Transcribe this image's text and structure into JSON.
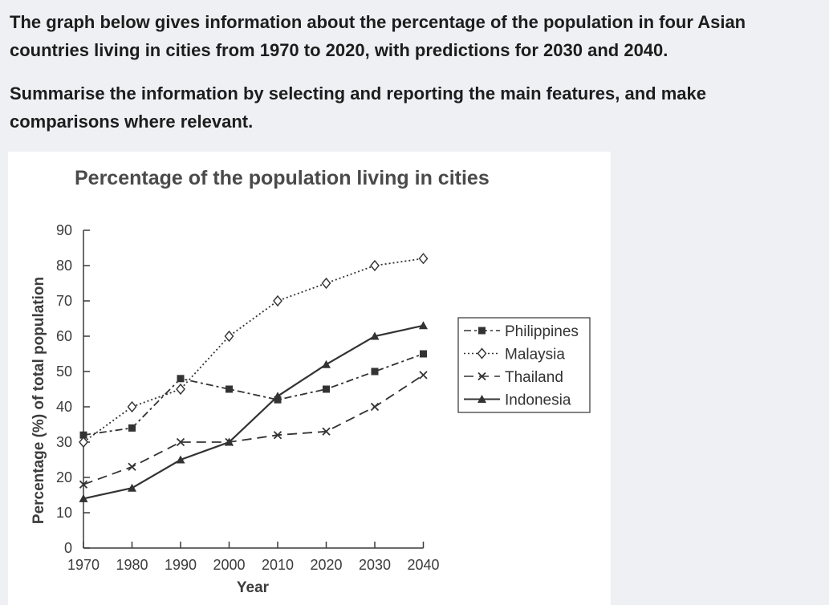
{
  "prompt": {
    "line1": "The graph below gives information about the percentage of the population in four Asian countries living in cities from 1970 to 2020, with predictions for 2030 and 2040.",
    "line2": "Summarise the information by selecting and reporting the main features, and make comparisons where relevant."
  },
  "chart_data": {
    "type": "line",
    "title": "Percentage of the population living in cities",
    "xlabel": "Year",
    "ylabel": "Percentage (%) of total population",
    "x": [
      1970,
      1980,
      1990,
      2000,
      2010,
      2020,
      2030,
      2040
    ],
    "x_ticks": [
      "1970",
      "1980",
      "1990",
      "2000",
      "2010",
      "2020",
      "2030",
      "2040"
    ],
    "y_ticks": [
      "0",
      "10",
      "20",
      "30",
      "40",
      "50",
      "60",
      "70",
      "80",
      "90"
    ],
    "ylim": [
      0,
      90
    ],
    "grid": false,
    "legend_position": "right",
    "series": [
      {
        "name": "Philippines",
        "marker": "square",
        "dash": "dash-dot",
        "values": [
          32,
          34,
          48,
          45,
          42,
          45,
          50,
          55
        ]
      },
      {
        "name": "Malaysia",
        "marker": "diamond",
        "dash": "dotted",
        "values": [
          30,
          40,
          45,
          60,
          70,
          75,
          80,
          82
        ]
      },
      {
        "name": "Thailand",
        "marker": "x",
        "dash": "dashed",
        "values": [
          18,
          23,
          30,
          30,
          32,
          33,
          40,
          49
        ]
      },
      {
        "name": "Indonesia",
        "marker": "triangle",
        "dash": "solid",
        "values": [
          14,
          17,
          25,
          30,
          43,
          52,
          60,
          63
        ]
      }
    ]
  }
}
